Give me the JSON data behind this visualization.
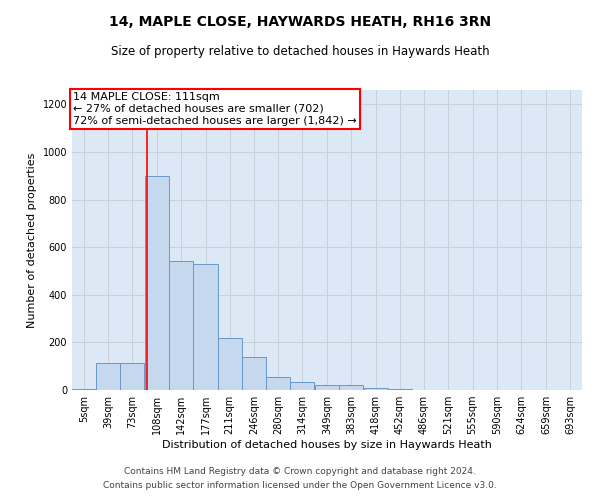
{
  "title1": "14, MAPLE CLOSE, HAYWARDS HEATH, RH16 3RN",
  "title2": "Size of property relative to detached houses in Haywards Heath",
  "xlabel": "Distribution of detached houses by size in Haywards Heath",
  "ylabel": "Number of detached properties",
  "bins": [
    5,
    39,
    73,
    108,
    142,
    177,
    211,
    246,
    280,
    314,
    349,
    383,
    418,
    452,
    486,
    521,
    555,
    590,
    624,
    659,
    693
  ],
  "bin_labels": [
    "5sqm",
    "39sqm",
    "73sqm",
    "108sqm",
    "142sqm",
    "177sqm",
    "211sqm",
    "246sqm",
    "280sqm",
    "314sqm",
    "349sqm",
    "383sqm",
    "418sqm",
    "452sqm",
    "486sqm",
    "521sqm",
    "555sqm",
    "590sqm",
    "624sqm",
    "659sqm",
    "693sqm"
  ],
  "bar_heights": [
    5,
    115,
    115,
    900,
    540,
    530,
    220,
    140,
    55,
    35,
    20,
    20,
    10,
    5,
    2,
    1,
    0,
    0,
    0,
    0
  ],
  "bar_color": "#c5d8ee",
  "bar_edge_color": "#6699cc",
  "red_line_x": 111,
  "annotation_line1": "14 MAPLE CLOSE: 111sqm",
  "annotation_line2": "← 27% of detached houses are smaller (702)",
  "annotation_line3": "72% of semi-detached houses are larger (1,842) →",
  "ylim": [
    0,
    1260
  ],
  "yticks": [
    0,
    200,
    400,
    600,
    800,
    1000,
    1200
  ],
  "grid_color": "#c8d0dc",
  "bg_color": "#dce8f5",
  "footnote1": "Contains HM Land Registry data © Crown copyright and database right 2024.",
  "footnote2": "Contains public sector information licensed under the Open Government Licence v3.0.",
  "title1_fontsize": 10,
  "title2_fontsize": 8.5,
  "xlabel_fontsize": 8,
  "ylabel_fontsize": 8,
  "tick_fontsize": 7,
  "annotation_fontsize": 8,
  "footnote_fontsize": 6.5
}
